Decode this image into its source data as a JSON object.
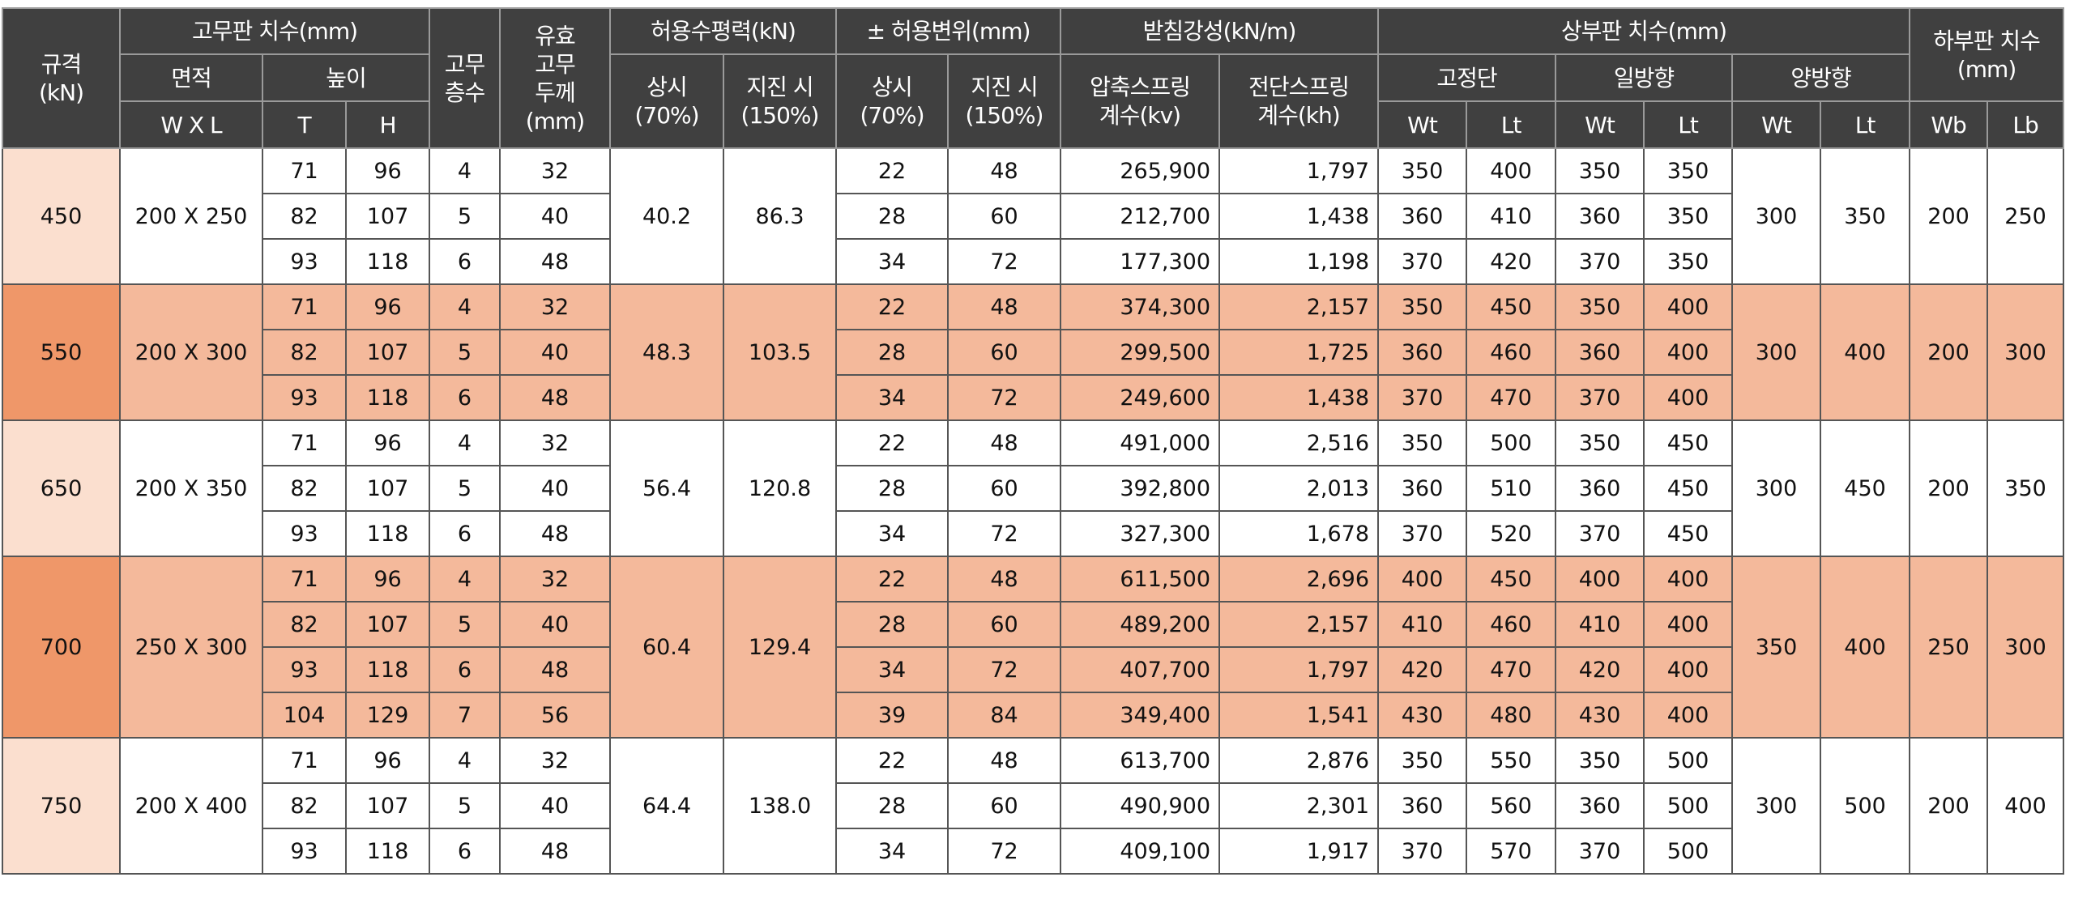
{
  "header": {
    "spec": "규격",
    "spec_unit": "(kN)",
    "rubber_dim": "고무판 치수(mm)",
    "area": "면적",
    "height": "높이",
    "wxl": "W X L",
    "t": "T",
    "h": "H",
    "layers": [
      "고무",
      "층수"
    ],
    "effective": [
      "유효",
      "고무",
      "두께",
      "(mm)"
    ],
    "allow_force": "허용수평력(kN)",
    "allow_disp": "± 허용변위(mm)",
    "normal": [
      "상시",
      "(70%)"
    ],
    "quake": [
      "지진 시",
      "(150%)"
    ],
    "stiffness": "받침강성(kN/m)",
    "kv": [
      "압축스프링",
      "계수(kv)"
    ],
    "kh": [
      "전단스프링",
      "계수(kh)"
    ],
    "upper": "상부판 치수(mm)",
    "fixed": "고정단",
    "oneway": "일방향",
    "twoway": "양방향",
    "lower": [
      "하부판 치수",
      "(mm)"
    ],
    "wt": "Wt",
    "lt": "Lt",
    "wb": "Wb",
    "lb": "Lb"
  },
  "colors": {
    "header": "#404040",
    "spec_light": "#fbdfcf",
    "spec_dark": "#ef9769",
    "row_highlight": "#f4b99b"
  },
  "groups": [
    {
      "spec": "450",
      "area": "200 X 250",
      "force_normal": "40.2",
      "force_quake": "86.3",
      "two_wt": "300",
      "two_lt": "350",
      "wb": "200",
      "lb": "250",
      "highlight": false,
      "rows": [
        {
          "t": "71",
          "h": "96",
          "layers": "4",
          "eff": "32",
          "d_normal": "22",
          "d_quake": "48",
          "kv": "265,900",
          "kh": "1,797",
          "fix_wt": "350",
          "fix_lt": "400",
          "one_wt": "350",
          "one_lt": "350"
        },
        {
          "t": "82",
          "h": "107",
          "layers": "5",
          "eff": "40",
          "d_normal": "28",
          "d_quake": "60",
          "kv": "212,700",
          "kh": "1,438",
          "fix_wt": "360",
          "fix_lt": "410",
          "one_wt": "360",
          "one_lt": "350"
        },
        {
          "t": "93",
          "h": "118",
          "layers": "6",
          "eff": "48",
          "d_normal": "34",
          "d_quake": "72",
          "kv": "177,300",
          "kh": "1,198",
          "fix_wt": "370",
          "fix_lt": "420",
          "one_wt": "370",
          "one_lt": "350"
        }
      ]
    },
    {
      "spec": "550",
      "area": "200 X 300",
      "force_normal": "48.3",
      "force_quake": "103.5",
      "two_wt": "300",
      "two_lt": "400",
      "wb": "200",
      "lb": "300",
      "highlight": true,
      "rows": [
        {
          "t": "71",
          "h": "96",
          "layers": "4",
          "eff": "32",
          "d_normal": "22",
          "d_quake": "48",
          "kv": "374,300",
          "kh": "2,157",
          "fix_wt": "350",
          "fix_lt": "450",
          "one_wt": "350",
          "one_lt": "400"
        },
        {
          "t": "82",
          "h": "107",
          "layers": "5",
          "eff": "40",
          "d_normal": "28",
          "d_quake": "60",
          "kv": "299,500",
          "kh": "1,725",
          "fix_wt": "360",
          "fix_lt": "460",
          "one_wt": "360",
          "one_lt": "400"
        },
        {
          "t": "93",
          "h": "118",
          "layers": "6",
          "eff": "48",
          "d_normal": "34",
          "d_quake": "72",
          "kv": "249,600",
          "kh": "1,438",
          "fix_wt": "370",
          "fix_lt": "470",
          "one_wt": "370",
          "one_lt": "400"
        }
      ]
    },
    {
      "spec": "650",
      "area": "200 X 350",
      "force_normal": "56.4",
      "force_quake": "120.8",
      "two_wt": "300",
      "two_lt": "450",
      "wb": "200",
      "lb": "350",
      "highlight": false,
      "rows": [
        {
          "t": "71",
          "h": "96",
          "layers": "4",
          "eff": "32",
          "d_normal": "22",
          "d_quake": "48",
          "kv": "491,000",
          "kh": "2,516",
          "fix_wt": "350",
          "fix_lt": "500",
          "one_wt": "350",
          "one_lt": "450"
        },
        {
          "t": "82",
          "h": "107",
          "layers": "5",
          "eff": "40",
          "d_normal": "28",
          "d_quake": "60",
          "kv": "392,800",
          "kh": "2,013",
          "fix_wt": "360",
          "fix_lt": "510",
          "one_wt": "360",
          "one_lt": "450"
        },
        {
          "t": "93",
          "h": "118",
          "layers": "6",
          "eff": "48",
          "d_normal": "34",
          "d_quake": "72",
          "kv": "327,300",
          "kh": "1,678",
          "fix_wt": "370",
          "fix_lt": "520",
          "one_wt": "370",
          "one_lt": "450"
        }
      ]
    },
    {
      "spec": "700",
      "area": "250 X 300",
      "force_normal": "60.4",
      "force_quake": "129.4",
      "two_wt": "350",
      "two_lt": "400",
      "wb": "250",
      "lb": "300",
      "highlight": true,
      "rows": [
        {
          "t": "71",
          "h": "96",
          "layers": "4",
          "eff": "32",
          "d_normal": "22",
          "d_quake": "48",
          "kv": "611,500",
          "kh": "2,696",
          "fix_wt": "400",
          "fix_lt": "450",
          "one_wt": "400",
          "one_lt": "400"
        },
        {
          "t": "82",
          "h": "107",
          "layers": "5",
          "eff": "40",
          "d_normal": "28",
          "d_quake": "60",
          "kv": "489,200",
          "kh": "2,157",
          "fix_wt": "410",
          "fix_lt": "460",
          "one_wt": "410",
          "one_lt": "400"
        },
        {
          "t": "93",
          "h": "118",
          "layers": "6",
          "eff": "48",
          "d_normal": "34",
          "d_quake": "72",
          "kv": "407,700",
          "kh": "1,797",
          "fix_wt": "420",
          "fix_lt": "470",
          "one_wt": "420",
          "one_lt": "400"
        },
        {
          "t": "104",
          "h": "129",
          "layers": "7",
          "eff": "56",
          "d_normal": "39",
          "d_quake": "84",
          "kv": "349,400",
          "kh": "1,541",
          "fix_wt": "430",
          "fix_lt": "480",
          "one_wt": "430",
          "one_lt": "400"
        }
      ]
    },
    {
      "spec": "750",
      "area": "200 X 400",
      "force_normal": "64.4",
      "force_quake": "138.0",
      "two_wt": "300",
      "two_lt": "500",
      "wb": "200",
      "lb": "400",
      "highlight": false,
      "rows": [
        {
          "t": "71",
          "h": "96",
          "layers": "4",
          "eff": "32",
          "d_normal": "22",
          "d_quake": "48",
          "kv": "613,700",
          "kh": "2,876",
          "fix_wt": "350",
          "fix_lt": "550",
          "one_wt": "350",
          "one_lt": "500"
        },
        {
          "t": "82",
          "h": "107",
          "layers": "5",
          "eff": "40",
          "d_normal": "28",
          "d_quake": "60",
          "kv": "490,900",
          "kh": "2,301",
          "fix_wt": "360",
          "fix_lt": "560",
          "one_wt": "360",
          "one_lt": "500"
        },
        {
          "t": "93",
          "h": "118",
          "layers": "6",
          "eff": "48",
          "d_normal": "34",
          "d_quake": "72",
          "kv": "409,100",
          "kh": "1,917",
          "fix_wt": "370",
          "fix_lt": "570",
          "one_wt": "370",
          "one_lt": "500"
        }
      ]
    }
  ]
}
